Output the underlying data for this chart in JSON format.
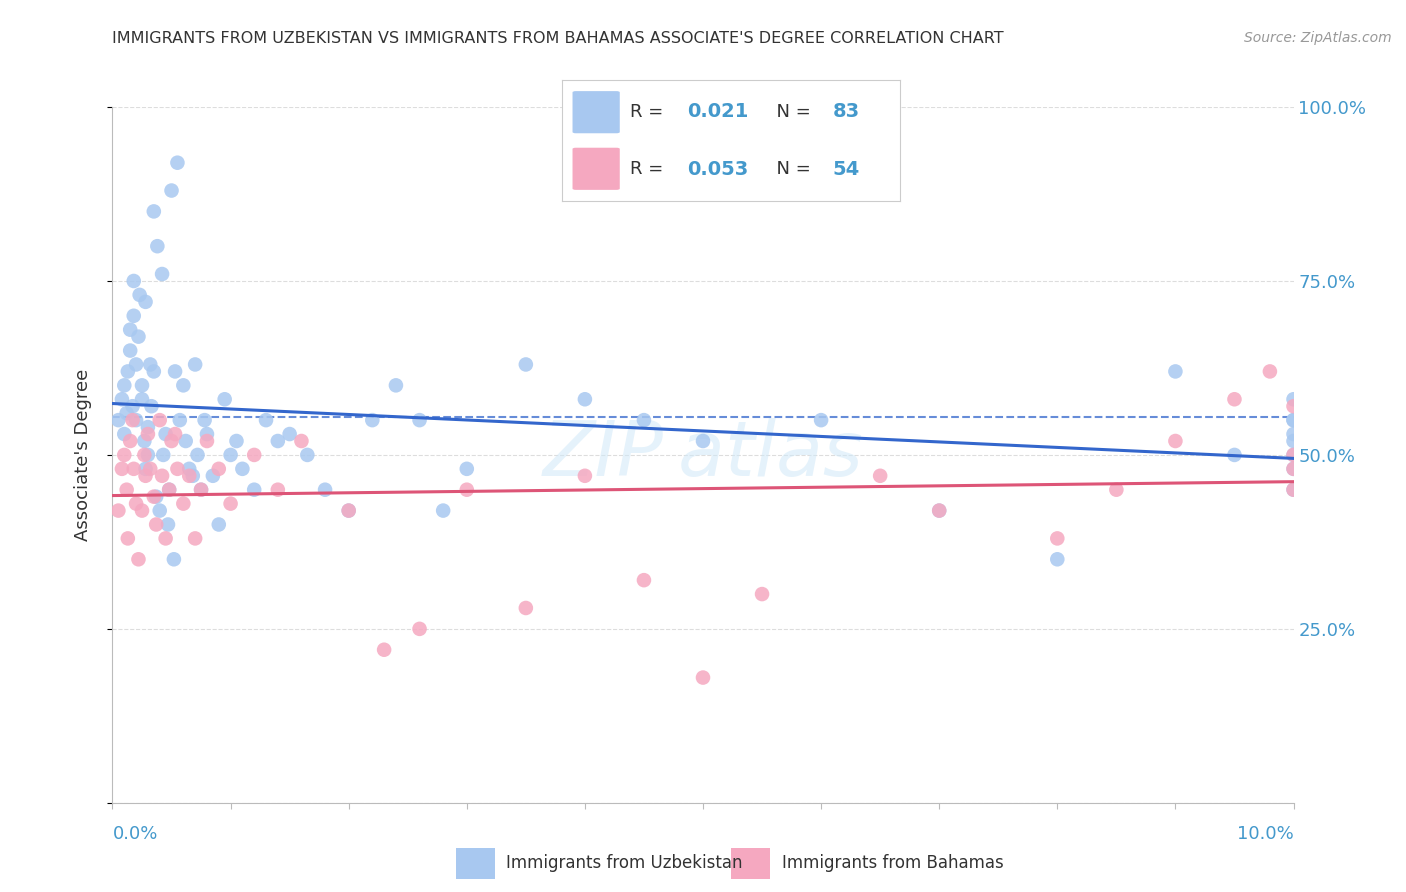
{
  "title": "IMMIGRANTS FROM UZBEKISTAN VS IMMIGRANTS FROM BAHAMAS ASSOCIATE'S DEGREE CORRELATION CHART",
  "source": "Source: ZipAtlas.com",
  "ylabel": "Associate's Degree",
  "x_range": [
    0,
    10
  ],
  "y_range": [
    0,
    100
  ],
  "legend_r1": "0.021",
  "legend_n1": "83",
  "legend_r2": "0.053",
  "legend_n2": "54",
  "color_uzbekistan": "#a8c8f0",
  "color_bahamas": "#f5a8c0",
  "color_blue_line": "#3366cc",
  "color_pink_line": "#dd5577",
  "color_axis": "#4499cc",
  "color_title": "#333333",
  "dashed_line_y": 55.5,
  "uzbekistan_x": [
    0.05,
    0.08,
    0.1,
    0.1,
    0.12,
    0.13,
    0.15,
    0.15,
    0.17,
    0.18,
    0.18,
    0.2,
    0.2,
    0.22,
    0.23,
    0.25,
    0.25,
    0.27,
    0.28,
    0.28,
    0.3,
    0.3,
    0.32,
    0.33,
    0.35,
    0.35,
    0.37,
    0.38,
    0.4,
    0.42,
    0.43,
    0.45,
    0.47,
    0.48,
    0.5,
    0.52,
    0.53,
    0.55,
    0.57,
    0.6,
    0.62,
    0.65,
    0.68,
    0.7,
    0.72,
    0.75,
    0.78,
    0.8,
    0.85,
    0.9,
    0.95,
    1.0,
    1.05,
    1.1,
    1.2,
    1.3,
    1.4,
    1.5,
    1.65,
    1.8,
    2.0,
    2.2,
    2.4,
    2.6,
    2.8,
    3.0,
    3.5,
    4.0,
    4.5,
    5.0,
    6.0,
    7.0,
    8.0,
    9.0,
    9.5,
    10.0,
    10.0,
    10.0,
    10.0,
    10.0,
    10.0,
    10.0,
    10.0
  ],
  "uzbekistan_y": [
    55,
    58,
    53,
    60,
    56,
    62,
    65,
    68,
    57,
    70,
    75,
    63,
    55,
    67,
    73,
    60,
    58,
    52,
    48,
    72,
    54,
    50,
    63,
    57,
    62,
    85,
    44,
    80,
    42,
    76,
    50,
    53,
    40,
    45,
    88,
    35,
    62,
    92,
    55,
    60,
    52,
    48,
    47,
    63,
    50,
    45,
    55,
    53,
    47,
    40,
    58,
    50,
    52,
    48,
    45,
    55,
    52,
    53,
    50,
    45,
    42,
    55,
    60,
    55,
    42,
    48,
    63,
    58,
    55,
    52,
    55,
    42,
    35,
    62,
    50,
    58,
    55,
    50,
    53,
    48,
    52,
    45,
    55
  ],
  "bahamas_x": [
    0.05,
    0.08,
    0.1,
    0.12,
    0.13,
    0.15,
    0.17,
    0.18,
    0.2,
    0.22,
    0.25,
    0.27,
    0.28,
    0.3,
    0.32,
    0.35,
    0.37,
    0.4,
    0.42,
    0.45,
    0.48,
    0.5,
    0.53,
    0.55,
    0.6,
    0.65,
    0.7,
    0.75,
    0.8,
    0.9,
    1.0,
    1.2,
    1.4,
    1.6,
    2.0,
    2.3,
    2.6,
    3.0,
    3.5,
    4.0,
    4.5,
    5.0,
    5.5,
    6.5,
    7.0,
    8.0,
    8.5,
    9.0,
    9.5,
    9.8,
    10.0,
    10.0,
    10.0,
    10.0
  ],
  "bahamas_y": [
    42,
    48,
    50,
    45,
    38,
    52,
    55,
    48,
    43,
    35,
    42,
    50,
    47,
    53,
    48,
    44,
    40,
    55,
    47,
    38,
    45,
    52,
    53,
    48,
    43,
    47,
    38,
    45,
    52,
    48,
    43,
    50,
    45,
    52,
    42,
    22,
    25,
    45,
    28,
    47,
    32,
    18,
    30,
    47,
    42,
    38,
    45,
    52,
    58,
    62,
    57,
    50,
    48,
    45
  ]
}
